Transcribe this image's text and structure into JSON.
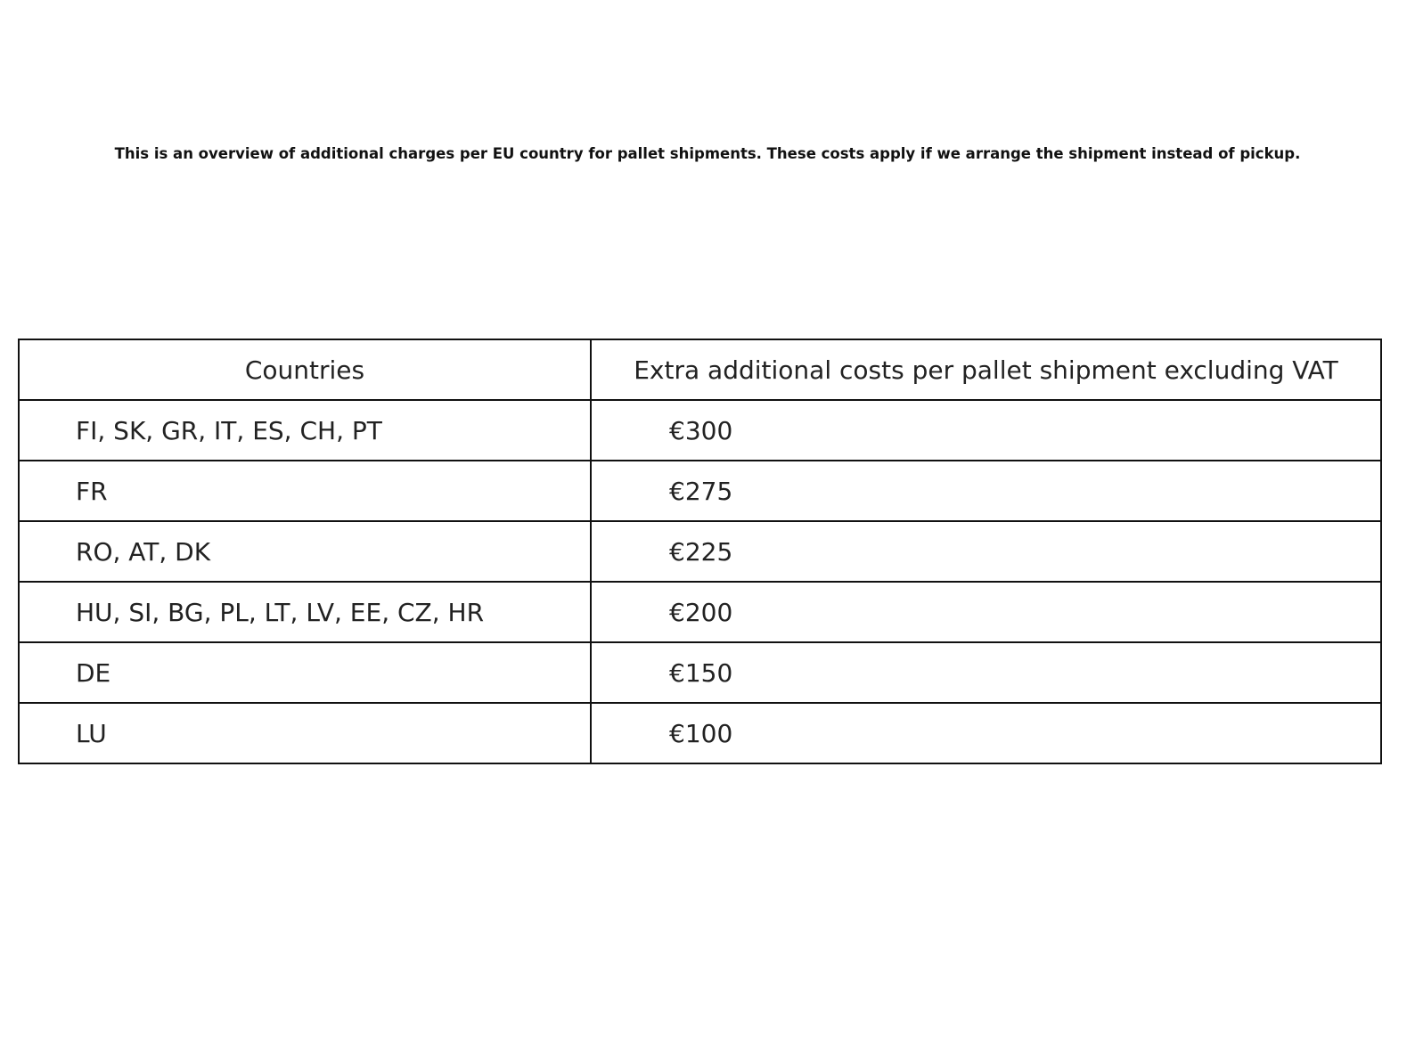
{
  "intro": "This is an overview of additional charges per EU country for pallet shipments. These costs apply if we arrange the shipment instead of pickup.",
  "table": {
    "headers": [
      "Countries",
      "Extra additional costs per pallet shipment excluding VAT"
    ],
    "rows": [
      {
        "countries": "FI, SK, GR, IT, ES, CH, PT",
        "cost": "€300"
      },
      {
        "countries": "FR",
        "cost": "€275"
      },
      {
        "countries": "RO, AT, DK",
        "cost": "€225"
      },
      {
        "countries": "HU, SI, BG, PL, LT, LV, EE, CZ, HR",
        "cost": "€200"
      },
      {
        "countries": "DE",
        "cost": "€150"
      },
      {
        "countries": "LU",
        "cost": "€100"
      }
    ]
  }
}
